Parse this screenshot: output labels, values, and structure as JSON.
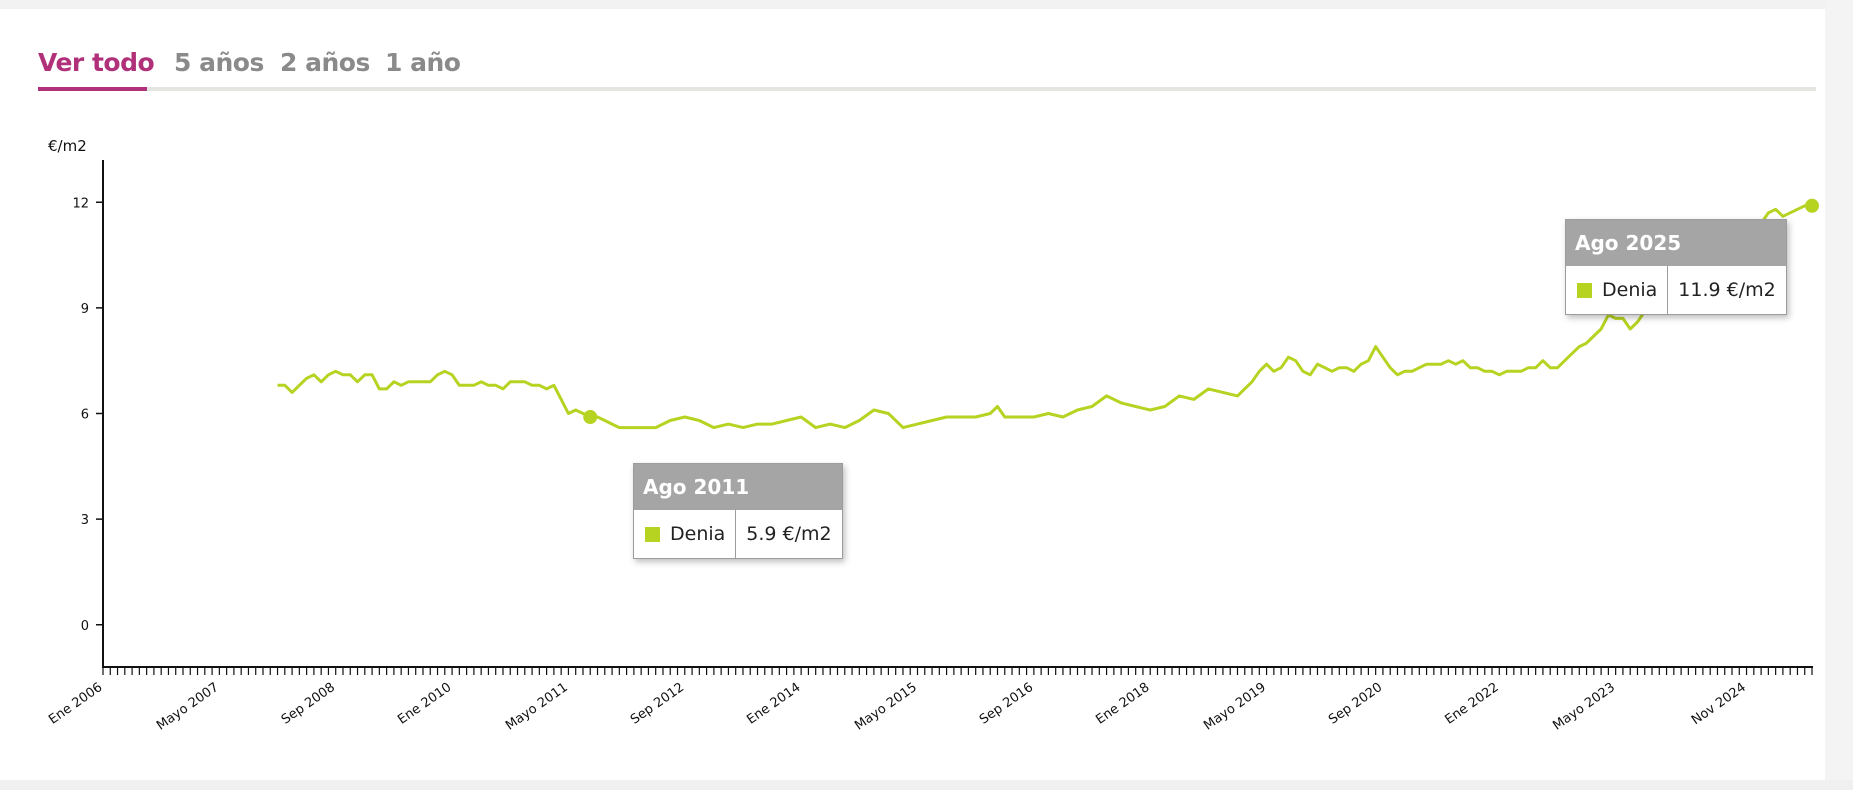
{
  "tabs": [
    {
      "label": "Ver todo",
      "active": true
    },
    {
      "label": "5 años",
      "active": false
    },
    {
      "label": "2 años",
      "active": false
    },
    {
      "label": "1 año",
      "active": false
    }
  ],
  "colors": {
    "accent": "#b0307a",
    "series": "#b5d320",
    "tooltip_header": "#a5a5a5",
    "tab_inactive": "#8a8a8a"
  },
  "tooltips": [
    {
      "title": "Ago 2011",
      "series": "Denia",
      "value": "5.9 €/m2"
    },
    {
      "title": "Ago 2025",
      "series": "Denia",
      "value": "11.9 €/m2"
    }
  ],
  "chart_data": {
    "type": "line",
    "ylabel": "€/m2",
    "ylim": [
      -1.2,
      13.2
    ],
    "yticks": [
      0,
      3,
      6,
      9,
      12
    ],
    "x_start": "2006-01",
    "x_end": "2025-08",
    "xtick_labels": [
      {
        "label": "Ene 2006",
        "date": "2006-01"
      },
      {
        "label": "Mayo 2007",
        "date": "2007-05"
      },
      {
        "label": "Sep 2008",
        "date": "2008-09"
      },
      {
        "label": "Ene 2010",
        "date": "2010-01"
      },
      {
        "label": "Mayo 2011",
        "date": "2011-05"
      },
      {
        "label": "Sep 2012",
        "date": "2012-09"
      },
      {
        "label": "Ene 2014",
        "date": "2014-01"
      },
      {
        "label": "Mayo 2015",
        "date": "2015-05"
      },
      {
        "label": "Sep 2016",
        "date": "2016-09"
      },
      {
        "label": "Ene 2018",
        "date": "2018-01"
      },
      {
        "label": "Mayo 2019",
        "date": "2019-05"
      },
      {
        "label": "Sep 2020",
        "date": "2020-09"
      },
      {
        "label": "Ene 2022",
        "date": "2022-01"
      },
      {
        "label": "Mayo 2023",
        "date": "2023-05"
      },
      {
        "label": "Nov 2024",
        "date": "2024-11"
      }
    ],
    "series": [
      {
        "name": "Denia",
        "color": "#b5d320",
        "points": [
          [
            "2008-01",
            6.8
          ],
          [
            "2008-02",
            6.8
          ],
          [
            "2008-03",
            6.6
          ],
          [
            "2008-04",
            6.8
          ],
          [
            "2008-05",
            7.0
          ],
          [
            "2008-06",
            7.1
          ],
          [
            "2008-07",
            6.9
          ],
          [
            "2008-08",
            7.1
          ],
          [
            "2008-09",
            7.2
          ],
          [
            "2008-10",
            7.1
          ],
          [
            "2008-11",
            7.1
          ],
          [
            "2008-12",
            6.9
          ],
          [
            "2009-01",
            7.1
          ],
          [
            "2009-02",
            7.1
          ],
          [
            "2009-03",
            6.7
          ],
          [
            "2009-04",
            6.7
          ],
          [
            "2009-05",
            6.9
          ],
          [
            "2009-06",
            6.8
          ],
          [
            "2009-07",
            6.9
          ],
          [
            "2009-08",
            6.9
          ],
          [
            "2009-09",
            6.9
          ],
          [
            "2009-10",
            6.9
          ],
          [
            "2009-11",
            7.1
          ],
          [
            "2009-12",
            7.2
          ],
          [
            "2010-01",
            7.1
          ],
          [
            "2010-02",
            6.8
          ],
          [
            "2010-03",
            6.8
          ],
          [
            "2010-04",
            6.8
          ],
          [
            "2010-05",
            6.9
          ],
          [
            "2010-06",
            6.8
          ],
          [
            "2010-07",
            6.8
          ],
          [
            "2010-08",
            6.7
          ],
          [
            "2010-09",
            6.9
          ],
          [
            "2010-10",
            6.9
          ],
          [
            "2010-11",
            6.9
          ],
          [
            "2010-12",
            6.8
          ],
          [
            "2011-01",
            6.8
          ],
          [
            "2011-02",
            6.7
          ],
          [
            "2011-03",
            6.8
          ],
          [
            "2011-04",
            6.4
          ],
          [
            "2011-05",
            6.0
          ],
          [
            "2011-06",
            6.1
          ],
          [
            "2011-07",
            6.0
          ],
          [
            "2011-08",
            5.9
          ],
          [
            "2011-09",
            5.9
          ],
          [
            "2011-10",
            5.8
          ],
          [
            "2011-11",
            5.7
          ],
          [
            "2011-12",
            5.6
          ],
          [
            "2012-01",
            5.6
          ],
          [
            "2012-03",
            5.6
          ],
          [
            "2012-05",
            5.6
          ],
          [
            "2012-07",
            5.8
          ],
          [
            "2012-09",
            5.9
          ],
          [
            "2012-11",
            5.8
          ],
          [
            "2013-01",
            5.6
          ],
          [
            "2013-03",
            5.7
          ],
          [
            "2013-05",
            5.6
          ],
          [
            "2013-07",
            5.7
          ],
          [
            "2013-09",
            5.7
          ],
          [
            "2013-11",
            5.8
          ],
          [
            "2014-01",
            5.9
          ],
          [
            "2014-03",
            5.6
          ],
          [
            "2014-05",
            5.7
          ],
          [
            "2014-07",
            5.6
          ],
          [
            "2014-09",
            5.8
          ],
          [
            "2014-11",
            6.1
          ],
          [
            "2015-01",
            6.0
          ],
          [
            "2015-03",
            5.6
          ],
          [
            "2015-05",
            5.7
          ],
          [
            "2015-07",
            5.8
          ],
          [
            "2015-09",
            5.9
          ],
          [
            "2015-11",
            5.9
          ],
          [
            "2016-01",
            5.9
          ],
          [
            "2016-03",
            6.0
          ],
          [
            "2016-04",
            6.2
          ],
          [
            "2016-05",
            5.9
          ],
          [
            "2016-07",
            5.9
          ],
          [
            "2016-09",
            5.9
          ],
          [
            "2016-11",
            6.0
          ],
          [
            "2017-01",
            5.9
          ],
          [
            "2017-03",
            6.1
          ],
          [
            "2017-05",
            6.2
          ],
          [
            "2017-07",
            6.5
          ],
          [
            "2017-09",
            6.3
          ],
          [
            "2017-11",
            6.2
          ],
          [
            "2018-01",
            6.1
          ],
          [
            "2018-03",
            6.2
          ],
          [
            "2018-05",
            6.5
          ],
          [
            "2018-07",
            6.4
          ],
          [
            "2018-09",
            6.7
          ],
          [
            "2018-11",
            6.6
          ],
          [
            "2019-01",
            6.5
          ],
          [
            "2019-03",
            6.9
          ],
          [
            "2019-04",
            7.2
          ],
          [
            "2019-05",
            7.4
          ],
          [
            "2019-06",
            7.2
          ],
          [
            "2019-07",
            7.3
          ],
          [
            "2019-08",
            7.6
          ],
          [
            "2019-09",
            7.5
          ],
          [
            "2019-10",
            7.2
          ],
          [
            "2019-11",
            7.1
          ],
          [
            "2019-12",
            7.4
          ],
          [
            "2020-01",
            7.3
          ],
          [
            "2020-02",
            7.2
          ],
          [
            "2020-03",
            7.3
          ],
          [
            "2020-04",
            7.3
          ],
          [
            "2020-05",
            7.2
          ],
          [
            "2020-06",
            7.4
          ],
          [
            "2020-07",
            7.5
          ],
          [
            "2020-08",
            7.9
          ],
          [
            "2020-09",
            7.6
          ],
          [
            "2020-10",
            7.3
          ],
          [
            "2020-11",
            7.1
          ],
          [
            "2020-12",
            7.2
          ],
          [
            "2021-01",
            7.2
          ],
          [
            "2021-02",
            7.3
          ],
          [
            "2021-03",
            7.4
          ],
          [
            "2021-04",
            7.4
          ],
          [
            "2021-05",
            7.4
          ],
          [
            "2021-06",
            7.5
          ],
          [
            "2021-07",
            7.4
          ],
          [
            "2021-08",
            7.5
          ],
          [
            "2021-09",
            7.3
          ],
          [
            "2021-10",
            7.3
          ],
          [
            "2021-11",
            7.2
          ],
          [
            "2021-12",
            7.2
          ],
          [
            "2022-01",
            7.1
          ],
          [
            "2022-02",
            7.2
          ],
          [
            "2022-03",
            7.2
          ],
          [
            "2022-04",
            7.2
          ],
          [
            "2022-05",
            7.3
          ],
          [
            "2022-06",
            7.3
          ],
          [
            "2022-07",
            7.5
          ],
          [
            "2022-08",
            7.3
          ],
          [
            "2022-09",
            7.3
          ],
          [
            "2022-10",
            7.5
          ],
          [
            "2022-11",
            7.7
          ],
          [
            "2022-12",
            7.9
          ],
          [
            "2023-01",
            8.0
          ],
          [
            "2023-02",
            8.2
          ],
          [
            "2023-03",
            8.4
          ],
          [
            "2023-04",
            8.8
          ],
          [
            "2023-05",
            8.7
          ],
          [
            "2023-06",
            8.7
          ],
          [
            "2023-07",
            8.4
          ],
          [
            "2023-08",
            8.6
          ],
          [
            "2023-09",
            8.9
          ],
          [
            "2023-10",
            9.4
          ],
          [
            "2023-11",
            9.8
          ],
          [
            "2023-12",
            10.0
          ],
          [
            "2024-01",
            10.3
          ],
          [
            "2024-02",
            10.6
          ],
          [
            "2024-03",
            10.6
          ],
          [
            "2024-04",
            10.8
          ],
          [
            "2024-05",
            10.7
          ],
          [
            "2024-06",
            10.6
          ],
          [
            "2024-07",
            10.7
          ],
          [
            "2024-08",
            10.8
          ],
          [
            "2024-09",
            10.9
          ],
          [
            "2024-10",
            11.1
          ],
          [
            "2024-11",
            11.2
          ],
          [
            "2024-12",
            11.3
          ],
          [
            "2025-01",
            11.4
          ],
          [
            "2025-02",
            11.7
          ],
          [
            "2025-03",
            11.8
          ],
          [
            "2025-04",
            11.6
          ],
          [
            "2025-05",
            11.7
          ],
          [
            "2025-06",
            11.8
          ],
          [
            "2025-07",
            11.9
          ],
          [
            "2025-08",
            11.9
          ]
        ]
      }
    ],
    "highlighted_points": [
      {
        "date": "2011-08",
        "value": 5.9
      },
      {
        "date": "2025-08",
        "value": 11.9
      }
    ]
  }
}
